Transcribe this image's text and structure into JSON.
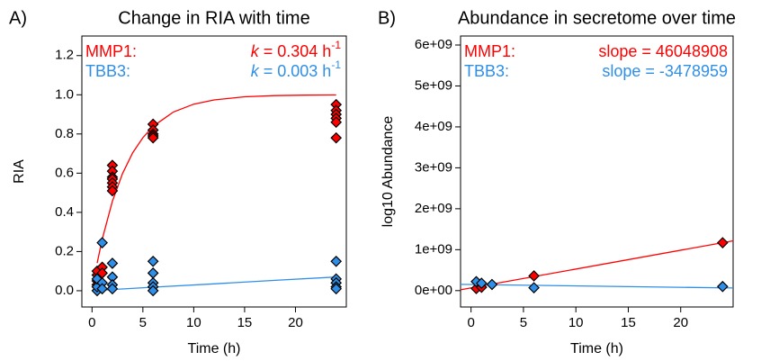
{
  "chart_data": [
    {
      "type": "scatter",
      "panel_label": "A)",
      "title": "Change in RIA with time",
      "x_label": "Time (h)",
      "y_label": "RIA",
      "xlim": [
        -1,
        25
      ],
      "ylim": [
        -0.083,
        1.3
      ],
      "xticks": [
        0,
        5,
        10,
        15,
        20
      ],
      "yticks": [
        {
          "value": 0,
          "label": "0.0"
        },
        0.2,
        0.4,
        0.6,
        0.8,
        {
          "value": 1,
          "label": "1.0"
        },
        1.2
      ],
      "series": [
        {
          "name": "MMP1:",
          "color": "#ff0000",
          "x": [
            0.5,
            0.5,
            0.5,
            1,
            1,
            0.5,
            2,
            2,
            2,
            2,
            2,
            2,
            2,
            6,
            6,
            6,
            6,
            6,
            24,
            24,
            24,
            24,
            24,
            24
          ],
          "values": [
            0.05,
            0.08,
            0.1,
            0.12,
            0.09,
            0.03,
            0.64,
            0.61,
            0.58,
            0.57,
            0.55,
            0.53,
            0.51,
            0.85,
            0.82,
            0.8,
            0.79,
            0.78,
            0.95,
            0.92,
            0.9,
            0.88,
            0.86,
            0.78
          ],
          "annotation": [
            "k",
            " = 0.304 h",
            "-1"
          ],
          "fit": {
            "x": [
              0.5,
              1,
              2,
              3,
              4,
              5,
              6,
              8,
              10,
              12,
              15,
              18,
              21,
              24
            ],
            "values": [
              0.141,
              0.262,
              0.456,
              0.598,
              0.704,
              0.781,
              0.839,
              0.912,
              0.952,
              0.974,
              0.99,
              0.996,
              0.998,
              0.999
            ]
          }
        },
        {
          "name": "TBB3:",
          "color": "#2f8fe8",
          "x": [
            0.5,
            0.5,
            0.5,
            1,
            1,
            1,
            2,
            2,
            2,
            2,
            6,
            6,
            6,
            6,
            6,
            24,
            24,
            24,
            24,
            24
          ],
          "values": [
            0.0,
            0.02,
            0.06,
            0.245,
            0.04,
            0.01,
            0.14,
            0.07,
            0.03,
            0.01,
            0.15,
            0.09,
            0.04,
            0.02,
            0.0,
            0.15,
            0.06,
            0.04,
            0.02,
            0.01
          ],
          "annotation": [
            "k",
            " = 0.003 h",
            "-1"
          ],
          "fit": {
            "x": [
              0.5,
              6,
              12,
              18,
              24
            ],
            "values": [
              0.0015,
              0.018,
              0.035,
              0.053,
              0.07
            ]
          }
        }
      ]
    },
    {
      "type": "scatter",
      "panel_label": "B)",
      "title": "Abundance in secretome over time",
      "x_label": "Time (h)",
      "y_label": "log10 Abundance",
      "xlim": [
        -1,
        25
      ],
      "ylim": [
        -400000000,
        6220000000
      ],
      "xticks": [
        0,
        5,
        10,
        15,
        20
      ],
      "yticks": [
        {
          "value": 0,
          "label": "0e+00"
        },
        {
          "value": 1000000000,
          "label": "1e+09"
        },
        {
          "value": 2000000000,
          "label": "2e+09"
        },
        {
          "value": 3000000000,
          "label": "3e+09"
        },
        {
          "value": 4000000000,
          "label": "4e+09"
        },
        {
          "value": 5000000000,
          "label": "5e+09"
        },
        {
          "value": 6000000000,
          "label": "6e+09"
        }
      ],
      "series": [
        {
          "name": "MMP1:",
          "color": "#ff0000",
          "x": [
            0.5,
            1,
            6,
            24
          ],
          "values": [
            50000000,
            80000000,
            360000000,
            1170000000
          ],
          "annotation": [
            "slope = 46048908"
          ],
          "fit": {
            "x": [
              -1,
              25
            ],
            "values": [
              19000000,
              1216000000
            ]
          }
        },
        {
          "name": "TBB3:",
          "color": "#2f8fe8",
          "x": [
            0.5,
            1,
            2,
            6,
            24
          ],
          "values": [
            220000000,
            180000000,
            150000000,
            70000000,
            100000000
          ],
          "annotation": [
            "slope = -3478959"
          ],
          "fit": {
            "x": [
              -1,
              25
            ],
            "values": [
              153000000,
              63000000
            ]
          }
        }
      ]
    }
  ]
}
